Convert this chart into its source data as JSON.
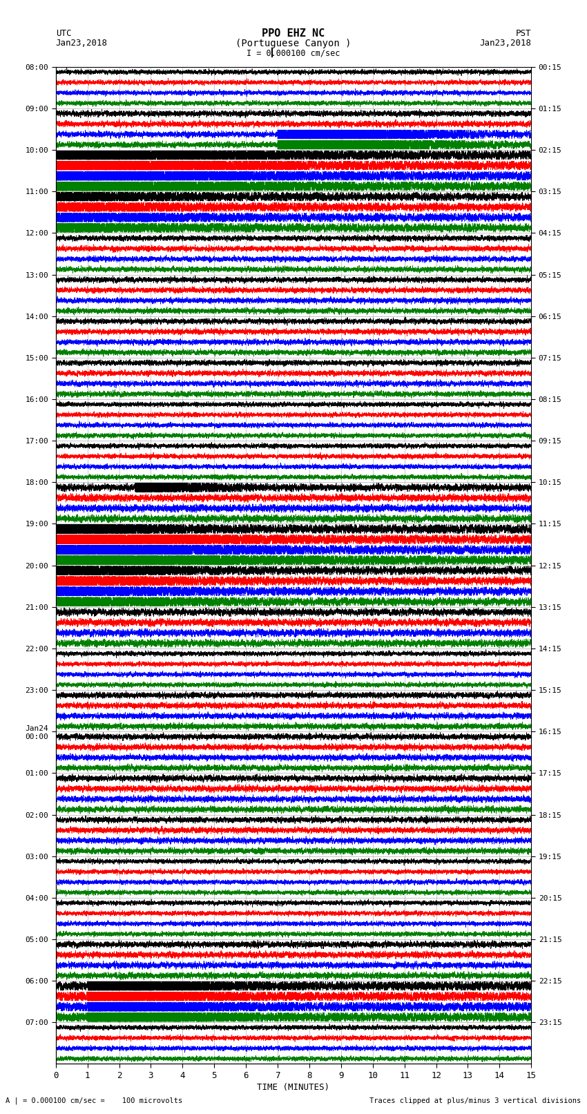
{
  "title_line1": "PPO EHZ NC",
  "title_line2": "(Portuguese Canyon )",
  "scale_bar": "I = 0.000100 cm/sec",
  "utc_label": "UTC",
  "utc_date": "Jan23,2018",
  "pst_label": "PST",
  "pst_date": "Jan23,2018",
  "xlabel": "TIME (MINUTES)",
  "footer_left": "A | = 0.000100 cm/sec =    100 microvolts",
  "footer_right": "Traces clipped at plus/minus 3 vertical divisions",
  "xlim": [
    0,
    15
  ],
  "xticks": [
    0,
    1,
    2,
    3,
    4,
    5,
    6,
    7,
    8,
    9,
    10,
    11,
    12,
    13,
    14,
    15
  ],
  "left_times_utc": [
    "08:00",
    "09:00",
    "10:00",
    "11:00",
    "12:00",
    "13:00",
    "14:00",
    "15:00",
    "16:00",
    "17:00",
    "18:00",
    "19:00",
    "20:00",
    "21:00",
    "22:00",
    "23:00",
    "Jan24\n00:00",
    "01:00",
    "02:00",
    "03:00",
    "04:00",
    "05:00",
    "06:00",
    "07:00"
  ],
  "right_times_pst": [
    "00:15",
    "01:15",
    "02:15",
    "03:15",
    "04:15",
    "05:15",
    "06:15",
    "07:15",
    "08:15",
    "09:15",
    "10:15",
    "11:15",
    "12:15",
    "13:15",
    "14:15",
    "15:15",
    "16:15",
    "17:15",
    "18:15",
    "19:15",
    "20:15",
    "21:15",
    "22:15",
    "23:15"
  ],
  "trace_colors": [
    "black",
    "red",
    "blue",
    "green"
  ],
  "n_segments": 24,
  "traces_per_segment": 4,
  "background_color": "white",
  "fig_width": 8.5,
  "fig_height": 16.13,
  "n_pts": 9000,
  "seed": 42,
  "vgrid_minutes": [
    1,
    2,
    3,
    4,
    5,
    6,
    7,
    8,
    9,
    10,
    11,
    12,
    13,
    14
  ],
  "large_event_segments": {
    "1": {
      "channels": [
        2,
        3
      ],
      "amp": 4.0
    },
    "2": {
      "channels": [
        0,
        1,
        2,
        3
      ],
      "amp": 3.5
    },
    "3": {
      "channels": [
        0,
        1,
        2,
        3
      ],
      "amp": 2.0
    },
    "10": {
      "channels": [
        0,
        1,
        2,
        3
      ],
      "amp": 2.5
    },
    "11": {
      "channels": [
        0,
        1,
        2,
        3
      ],
      "amp": 3.5
    },
    "12": {
      "channels": [
        0,
        1,
        2,
        3
      ],
      "amp": 2.5
    },
    "13": {
      "channels": [
        0,
        1,
        2,
        3
      ],
      "amp": 2.0
    },
    "21": {
      "channels": [
        2,
        3
      ],
      "amp": 3.0
    },
    "22": {
      "channels": [
        0,
        1,
        2,
        3
      ],
      "amp": 3.5
    }
  }
}
